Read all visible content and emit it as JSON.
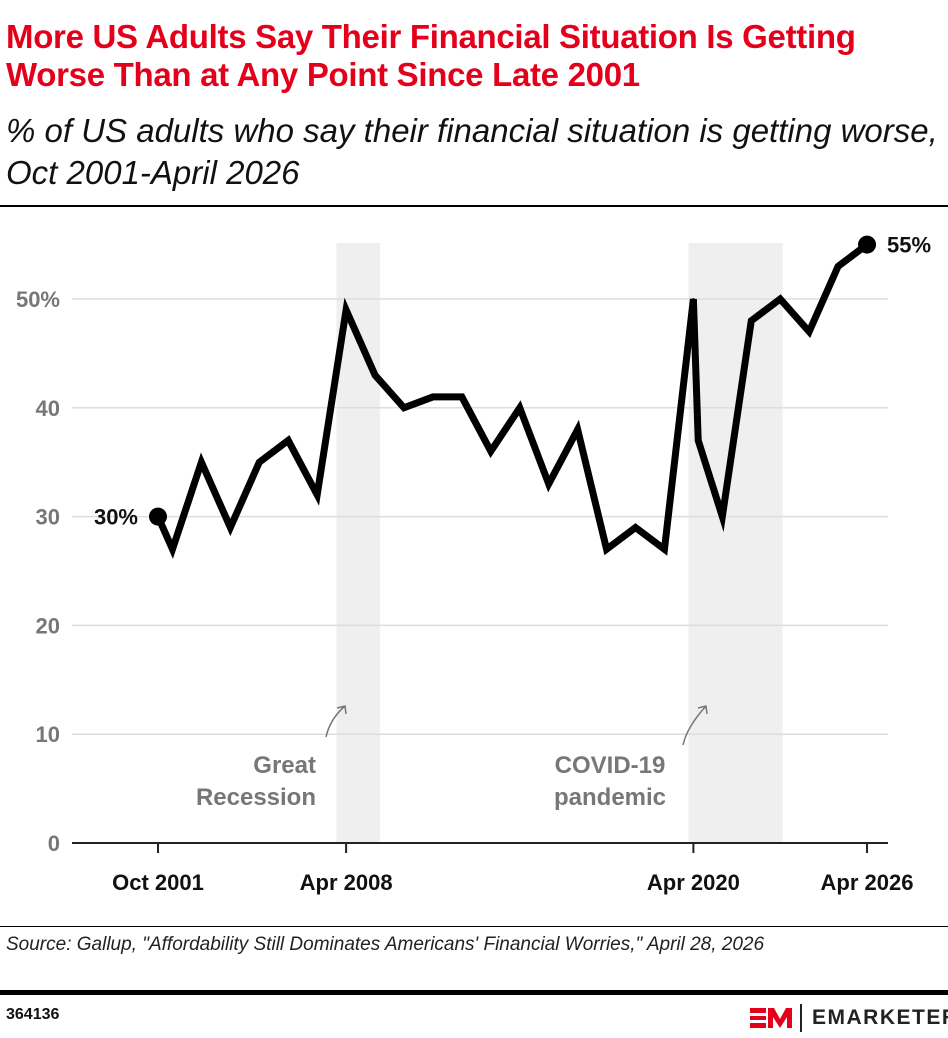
{
  "title": "More US Adults Say Their Financial Situation Is Getting Worse Than at Any Point Since Late 2001",
  "subtitle": "% of US adults who say their financial situation is getting worse, Oct 2001-April 2026",
  "source": "Source: Gallup, \"Affordability Still Dominates Americans' Financial Worries,\" April 28, 2026",
  "chart_id": "364136",
  "brand": {
    "name": "EMARKETER",
    "color": "#e4001b"
  },
  "chart_data": {
    "type": "line",
    "title": "More US Adults Say Their Financial Situation Is Getting Worse Than at Any Point Since Late 2001",
    "ylim": [
      0,
      55
    ],
    "y_ticks": [
      0,
      10,
      20,
      30,
      40,
      50
    ],
    "y_tick_labels": [
      "0",
      "10",
      "20",
      "30",
      "40",
      "50%"
    ],
    "x_ticks": [
      {
        "date": "2001-10",
        "label": "Oct 2001"
      },
      {
        "date": "2008-04",
        "label": "Apr 2008"
      },
      {
        "date": "2020-04",
        "label": "Apr 2020"
      },
      {
        "date": "2026-04",
        "label": "Apr 2026"
      }
    ],
    "grid": true,
    "line_color": "#000000",
    "series": [
      {
        "x": [
          "2001-10",
          "2002-04",
          "2003-04",
          "2004-04",
          "2005-04",
          "2006-04",
          "2007-04",
          "2008-04",
          "2009-04",
          "2010-04",
          "2011-04",
          "2012-04",
          "2013-04",
          "2014-04",
          "2015-04",
          "2016-04",
          "2017-04",
          "2018-04",
          "2019-04",
          "2020-04",
          "2020-06",
          "2021-04",
          "2022-04",
          "2023-04",
          "2024-04",
          "2025-04",
          "2026-04"
        ],
        "values": [
          30,
          27,
          35,
          29,
          35,
          37,
          32,
          49,
          43,
          40,
          41,
          41,
          36,
          40,
          33,
          38,
          27,
          29,
          27,
          50,
          37,
          30,
          48,
          50,
          47,
          53,
          55
        ]
      }
    ],
    "data_labels": [
      {
        "index": 0,
        "text": "30%"
      },
      {
        "index": 26,
        "text": "55%"
      }
    ],
    "shaded_periods": [
      {
        "start": "2007-12",
        "end": "2009-06",
        "label": "Great Recession",
        "color": "#efefef"
      },
      {
        "start": "2020-02",
        "end": "2023-05",
        "label": "COVID-19 pandemic",
        "color": "#efefef"
      }
    ]
  }
}
